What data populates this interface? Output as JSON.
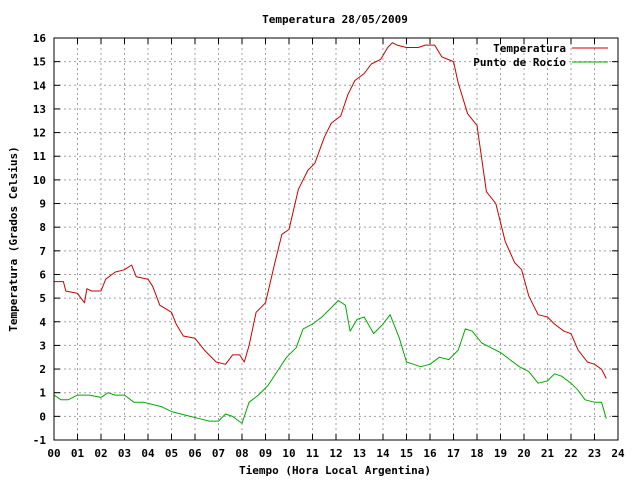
{
  "chart_data": {
    "type": "line",
    "title": "Temperatura 28/05/2009",
    "xlabel": "Tiempo (Hora Local Argentina)",
    "ylabel": "Temperatura (Grados Celsius)",
    "xlim": [
      0,
      24
    ],
    "ylim": [
      -1,
      16
    ],
    "grid": true,
    "legend": "top-right",
    "xticks": [
      "00",
      "01",
      "02",
      "03",
      "04",
      "05",
      "06",
      "07",
      "08",
      "09",
      "10",
      "11",
      "12",
      "13",
      "14",
      "15",
      "16",
      "17",
      "18",
      "19",
      "20",
      "21",
      "22",
      "23",
      "24"
    ],
    "yticks": [
      "-1",
      "0",
      "1",
      "2",
      "3",
      "4",
      "5",
      "6",
      "7",
      "8",
      "9",
      "10",
      "11",
      "12",
      "13",
      "14",
      "15",
      "16"
    ],
    "series": [
      {
        "name": "Temperatura",
        "color": "#cc0000",
        "x": [
          0.0,
          0.4,
          0.5,
          1.0,
          1.3,
          1.4,
          1.6,
          2.0,
          2.2,
          2.6,
          3.0,
          3.3,
          3.5,
          4.0,
          4.2,
          4.5,
          5.0,
          5.2,
          5.5,
          6.0,
          6.4,
          6.9,
          7.3,
          7.6,
          7.9,
          8.1,
          8.3,
          8.6,
          9.0,
          9.4,
          9.7,
          10.0,
          10.4,
          10.8,
          11.1,
          11.5,
          11.8,
          12.2,
          12.5,
          12.8,
          13.2,
          13.5,
          13.9,
          14.2,
          14.4,
          14.6,
          15.0,
          15.5,
          15.8,
          16.2,
          16.5,
          17.0,
          17.2,
          17.6,
          18.0,
          18.4,
          18.8,
          19.2,
          19.6,
          19.9,
          20.2,
          20.6,
          21.0,
          21.3,
          21.7,
          22.0,
          22.3,
          22.7,
          23.0,
          23.3,
          23.5
        ],
        "values": [
          5.7,
          5.7,
          5.3,
          5.2,
          4.8,
          5.4,
          5.3,
          5.3,
          5.8,
          6.1,
          6.2,
          6.4,
          5.9,
          5.8,
          5.5,
          4.7,
          4.4,
          3.9,
          3.4,
          3.3,
          2.8,
          2.3,
          2.2,
          2.6,
          2.6,
          2.3,
          3.0,
          4.4,
          4.8,
          6.5,
          7.7,
          7.9,
          9.6,
          10.4,
          10.7,
          11.8,
          12.4,
          12.7,
          13.6,
          14.2,
          14.5,
          14.9,
          15.1,
          15.6,
          15.8,
          15.7,
          15.6,
          15.6,
          15.7,
          15.7,
          15.2,
          15.0,
          14.1,
          12.8,
          12.3,
          9.5,
          9.0,
          7.4,
          6.5,
          6.2,
          5.1,
          4.3,
          4.2,
          3.9,
          3.6,
          3.5,
          2.8,
          2.3,
          2.2,
          2.0,
          1.6
        ]
      },
      {
        "name": "Punto de Rocío",
        "color": "#00aa00",
        "x": [
          0.0,
          0.3,
          0.6,
          1.0,
          1.5,
          2.0,
          2.3,
          2.6,
          3.0,
          3.4,
          3.8,
          4.2,
          4.6,
          5.0,
          5.4,
          5.8,
          6.2,
          6.6,
          7.0,
          7.3,
          7.6,
          8.0,
          8.3,
          8.7,
          9.1,
          9.5,
          9.9,
          10.3,
          10.6,
          11.0,
          11.4,
          11.8,
          12.1,
          12.4,
          12.6,
          12.9,
          13.2,
          13.6,
          14.0,
          14.3,
          14.7,
          15.0,
          15.3,
          15.6,
          16.0,
          16.4,
          16.8,
          17.2,
          17.5,
          17.8,
          18.2,
          18.6,
          19.0,
          19.4,
          19.8,
          20.2,
          20.6,
          21.0,
          21.3,
          21.6,
          22.0,
          22.3,
          22.6,
          23.0,
          23.3,
          23.5
        ],
        "values": [
          0.9,
          0.7,
          0.7,
          0.9,
          0.9,
          0.8,
          1.0,
          0.9,
          0.9,
          0.6,
          0.6,
          0.5,
          0.4,
          0.2,
          0.1,
          0.0,
          -0.1,
          -0.2,
          -0.2,
          0.1,
          0.0,
          -0.3,
          0.6,
          0.9,
          1.3,
          1.9,
          2.5,
          2.9,
          3.7,
          3.9,
          4.2,
          4.6,
          4.9,
          4.7,
          3.6,
          4.1,
          4.2,
          3.5,
          3.9,
          4.3,
          3.3,
          2.3,
          2.2,
          2.1,
          2.2,
          2.5,
          2.4,
          2.8,
          3.7,
          3.6,
          3.1,
          2.9,
          2.7,
          2.4,
          2.1,
          1.9,
          1.4,
          1.5,
          1.8,
          1.7,
          1.4,
          1.1,
          0.7,
          0.6,
          0.6,
          -0.1
        ]
      }
    ]
  }
}
